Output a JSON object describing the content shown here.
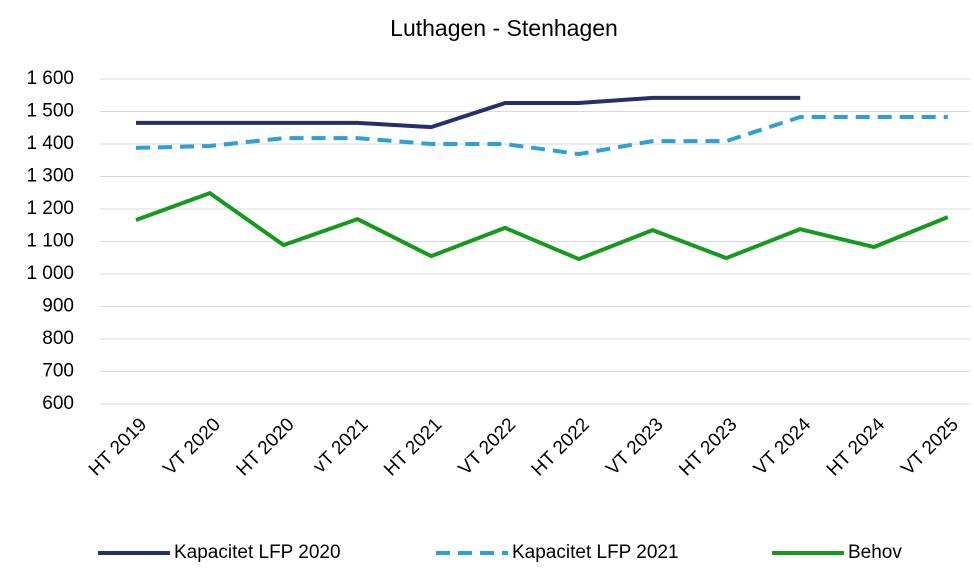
{
  "chart_data": {
    "type": "line",
    "title": "Luthagen - Stenhagen",
    "categories": [
      "HT 2019",
      "VT 2020",
      "HT 2020",
      "vT 2021",
      "HT 2021",
      "VT 2022",
      "HT 2022",
      "VT 2023",
      "HT 2023",
      "VT 2024",
      "HT 2024",
      "VT 2025"
    ],
    "series": [
      {
        "name": "Kapacitet LFP 2020",
        "color": "#23306b",
        "dashed": false,
        "values": [
          1465,
          1465,
          1465,
          1465,
          1452,
          1526,
          1526,
          1542,
          1542,
          1542,
          null,
          null
        ]
      },
      {
        "name": "Kapacitet LFP 2021",
        "color": "#2f9fd8",
        "dashed": true,
        "values": [
          1388,
          1394,
          1418,
          1418,
          1400,
          1400,
          1369,
          1409,
          1409,
          1483,
          1483,
          1483
        ]
      },
      {
        "name": "Behov",
        "color": "#159a1e",
        "dashed": false,
        "values": [
          1166,
          1249,
          1089,
          1169,
          1055,
          1142,
          1046,
          1135,
          1049,
          1138,
          1083,
          1175
        ]
      }
    ],
    "ylim": [
      600,
      1600
    ],
    "yticks": [
      600,
      700,
      800,
      900,
      {
        "value": 1000,
        "label": "1 000"
      },
      {
        "value": 1100,
        "label": "1 100"
      },
      {
        "value": 1200,
        "label": "1 200"
      },
      {
        "value": 1300,
        "label": "1 300"
      },
      {
        "value": 1400,
        "label": "1 400"
      },
      {
        "value": 1500,
        "label": "1 500"
      },
      {
        "value": 1600,
        "label": "1 600"
      }
    ],
    "grid": true,
    "legend": "bottom"
  }
}
